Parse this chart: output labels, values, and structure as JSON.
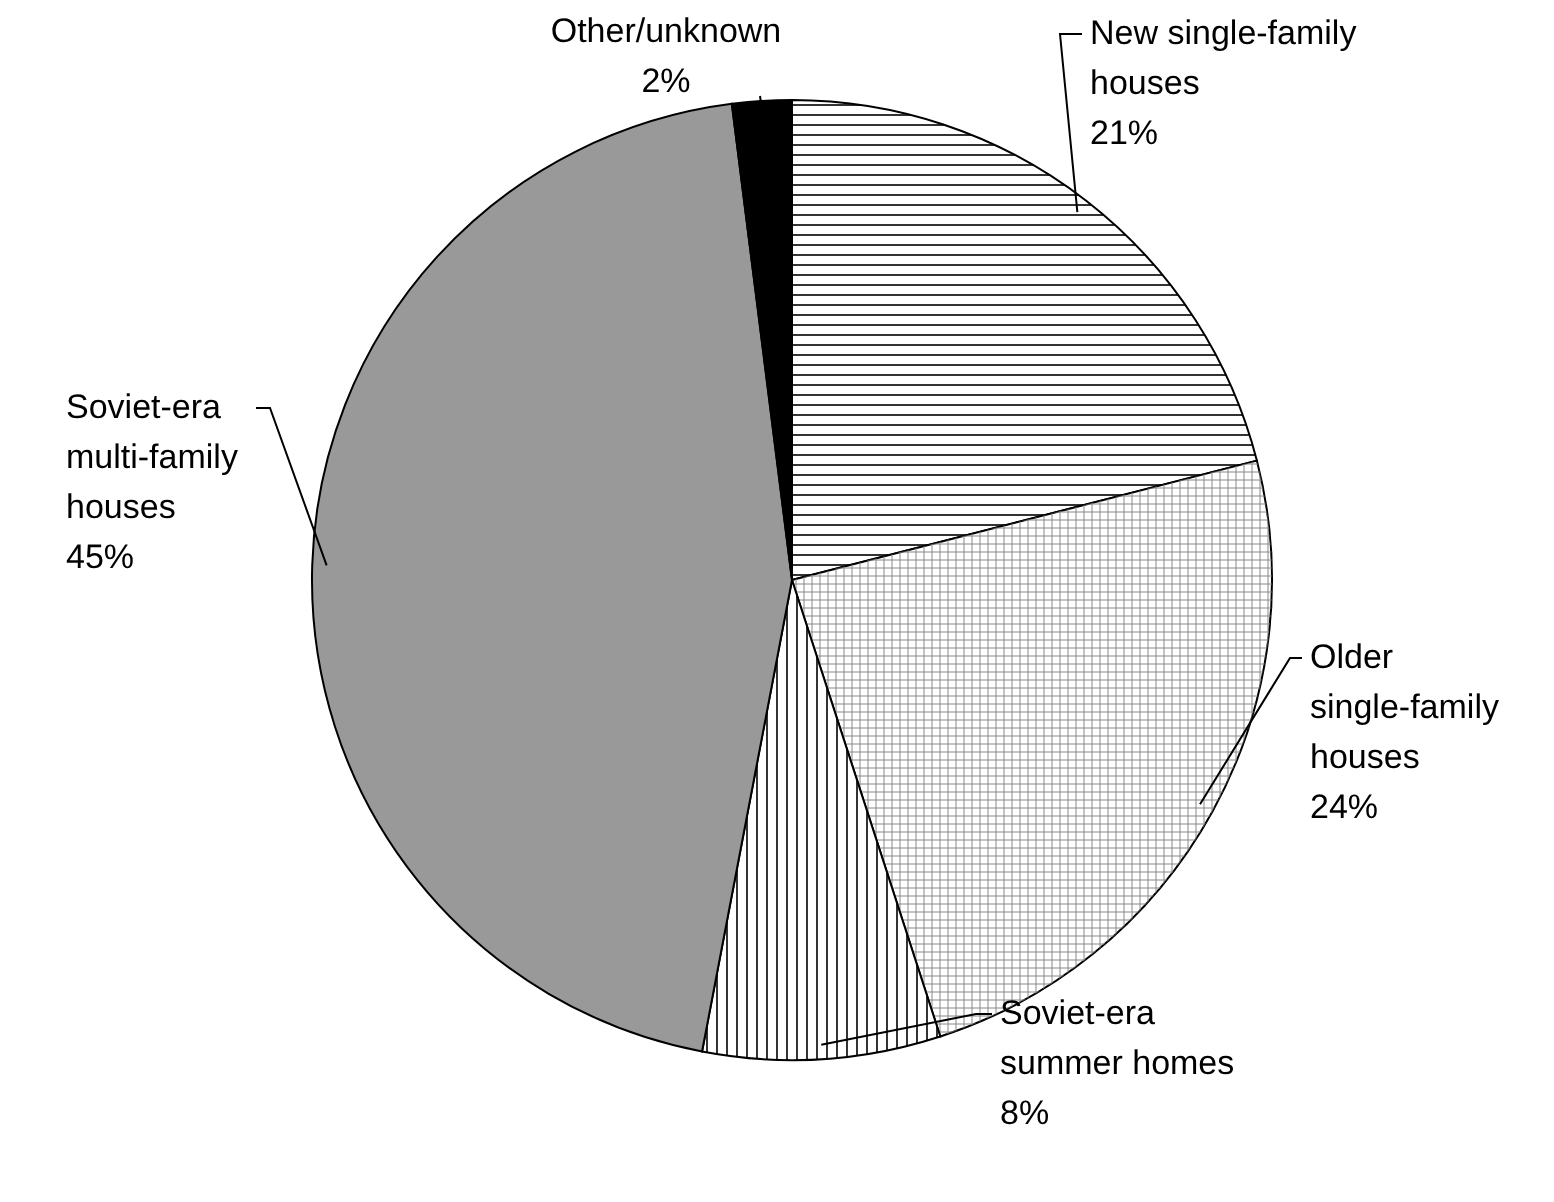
{
  "chart_data": {
    "type": "pie",
    "categories": [
      "New single-family houses",
      "Older single-family houses",
      "Soviet-era summer homes",
      "Soviet-era multi-family houses",
      "Other/unknown"
    ],
    "values": [
      21,
      24,
      8,
      45,
      2
    ],
    "colors": [
      "#ffffff",
      "#ffffff",
      "#ffffff",
      "#999999",
      "#000000"
    ],
    "value_labels": [
      "21%",
      "24%",
      "8%",
      "45%",
      "2%"
    ]
  }
}
